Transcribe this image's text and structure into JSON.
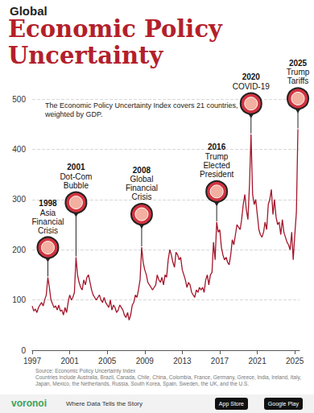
{
  "chart_data": {
    "type": "line",
    "pretitle": "Global",
    "title": "Economic Policy Uncertainty",
    "subtitle": "The Economic Policy Uncertainty Index covers 21 countries, weighted by GDP.",
    "color": "#a3162b",
    "grid": true,
    "xlim": [
      1997,
      2025.5
    ],
    "xticks": [
      1997,
      2001,
      2005,
      2009,
      2013,
      2017,
      2021,
      2025
    ],
    "ylim": [
      0,
      500
    ],
    "yticks": [
      0,
      100,
      200,
      300,
      400,
      500
    ],
    "x": [
      1997.0,
      1997.17,
      1997.33,
      1997.5,
      1997.67,
      1997.83,
      1998.0,
      1998.17,
      1998.33,
      1998.5,
      1998.67,
      1998.83,
      1999.0,
      1999.17,
      1999.33,
      1999.5,
      1999.67,
      1999.83,
      2000.0,
      2000.17,
      2000.33,
      2000.5,
      2000.67,
      2000.83,
      2001.0,
      2001.17,
      2001.33,
      2001.5,
      2001.67,
      2001.83,
      2002.0,
      2002.17,
      2002.33,
      2002.5,
      2002.67,
      2002.83,
      2003.0,
      2003.17,
      2003.33,
      2003.5,
      2003.67,
      2003.83,
      2004.0,
      2004.17,
      2004.33,
      2004.5,
      2004.67,
      2004.83,
      2005.0,
      2005.17,
      2005.33,
      2005.5,
      2005.67,
      2005.83,
      2006.0,
      2006.17,
      2006.33,
      2006.5,
      2006.67,
      2006.83,
      2007.0,
      2007.17,
      2007.33,
      2007.5,
      2007.67,
      2007.83,
      2008.0,
      2008.17,
      2008.33,
      2008.5,
      2008.67,
      2008.83,
      2009.0,
      2009.17,
      2009.33,
      2009.5,
      2009.67,
      2009.83,
      2010.0,
      2010.17,
      2010.33,
      2010.5,
      2010.67,
      2010.83,
      2011.0,
      2011.17,
      2011.33,
      2011.5,
      2011.67,
      2011.83,
      2012.0,
      2012.17,
      2012.33,
      2012.5,
      2012.67,
      2012.83,
      2013.0,
      2013.17,
      2013.33,
      2013.5,
      2013.67,
      2013.83,
      2014.0,
      2014.17,
      2014.33,
      2014.5,
      2014.67,
      2014.83,
      2015.0,
      2015.17,
      2015.33,
      2015.5,
      2015.67,
      2015.83,
      2016.0,
      2016.17,
      2016.33,
      2016.5,
      2016.67,
      2016.83,
      2017.0,
      2017.17,
      2017.33,
      2017.5,
      2017.67,
      2017.83,
      2018.0,
      2018.17,
      2018.33,
      2018.5,
      2018.67,
      2018.83,
      2019.0,
      2019.17,
      2019.33,
      2019.5,
      2019.67,
      2019.83,
      2020.0,
      2020.17,
      2020.33,
      2020.5,
      2020.67,
      2020.83,
      2021.0,
      2021.17,
      2021.33,
      2021.5,
      2021.67,
      2021.83,
      2022.0,
      2022.17,
      2022.33,
      2022.5,
      2022.67,
      2022.83,
      2023.0,
      2023.17,
      2023.33,
      2023.5,
      2023.67,
      2023.83,
      2024.0,
      2024.17,
      2024.33,
      2024.5,
      2024.67,
      2024.83,
      2025.0,
      2025.17,
      2025.33
    ],
    "values": [
      88,
      78,
      82,
      75,
      85,
      90,
      95,
      88,
      100,
      110,
      145,
      125,
      100,
      92,
      85,
      88,
      80,
      90,
      78,
      80,
      70,
      85,
      75,
      95,
      110,
      100,
      105,
      115,
      185,
      150,
      135,
      125,
      120,
      140,
      130,
      145,
      150,
      135,
      120,
      110,
      105,
      100,
      105,
      110,
      100,
      95,
      105,
      95,
      90,
      85,
      100,
      80,
      90,
      85,
      75,
      80,
      90,
      85,
      80,
      70,
      65,
      75,
      60,
      70,
      90,
      95,
      110,
      105,
      120,
      140,
      205,
      175,
      160,
      150,
      135,
      130,
      125,
      120,
      125,
      130,
      150,
      140,
      135,
      145,
      130,
      150,
      145,
      180,
      200,
      190,
      175,
      165,
      195,
      190,
      180,
      185,
      160,
      150,
      140,
      125,
      135,
      130,
      115,
      110,
      105,
      120,
      115,
      125,
      120,
      125,
      115,
      140,
      150,
      130,
      150,
      155,
      215,
      180,
      255,
      235,
      240,
      205,
      190,
      180,
      185,
      175,
      170,
      190,
      220,
      210,
      230,
      250,
      245,
      240,
      260,
      290,
      310,
      280,
      260,
      330,
      430,
      310,
      290,
      300,
      270,
      240,
      230,
      225,
      235,
      255,
      240,
      290,
      300,
      320,
      270,
      300,
      265,
      250,
      255,
      230,
      260,
      235,
      225,
      215,
      210,
      200,
      235,
      180,
      230,
      275,
      440
    ],
    "annotations": [
      {
        "year": "1998",
        "label": "Asia Financial Crisis",
        "x": 1998.67
      },
      {
        "year": "2001",
        "label": "Dot-Com Bubble",
        "x": 2001.67
      },
      {
        "year": "2008",
        "label": "Global Financial Crisis",
        "x": 2008.67
      },
      {
        "year": "2016",
        "label": "Trump Elected President",
        "x": 2016.67
      },
      {
        "year": "2020",
        "label": "COVID-19",
        "x": 2020.33
      },
      {
        "year": "2025",
        "label": "Trump Tariffs",
        "x": 2025.33
      }
    ],
    "source": "Source: Economic Policy Uncertainty Index",
    "note": "Countries include Australia, Brazil, Canada, Chile, China, Colombia, France, Germany, Greece, India, Ireland, Italy, Japan, Mexico, the Netherlands, Russia, South Korea, Spain, Sweden, the UK, and the U.S.",
    "footer": {
      "brand": "voronoi",
      "tagline": "Where Data Tells the Story",
      "buttons": [
        "App Store",
        "Google Play"
      ]
    }
  }
}
